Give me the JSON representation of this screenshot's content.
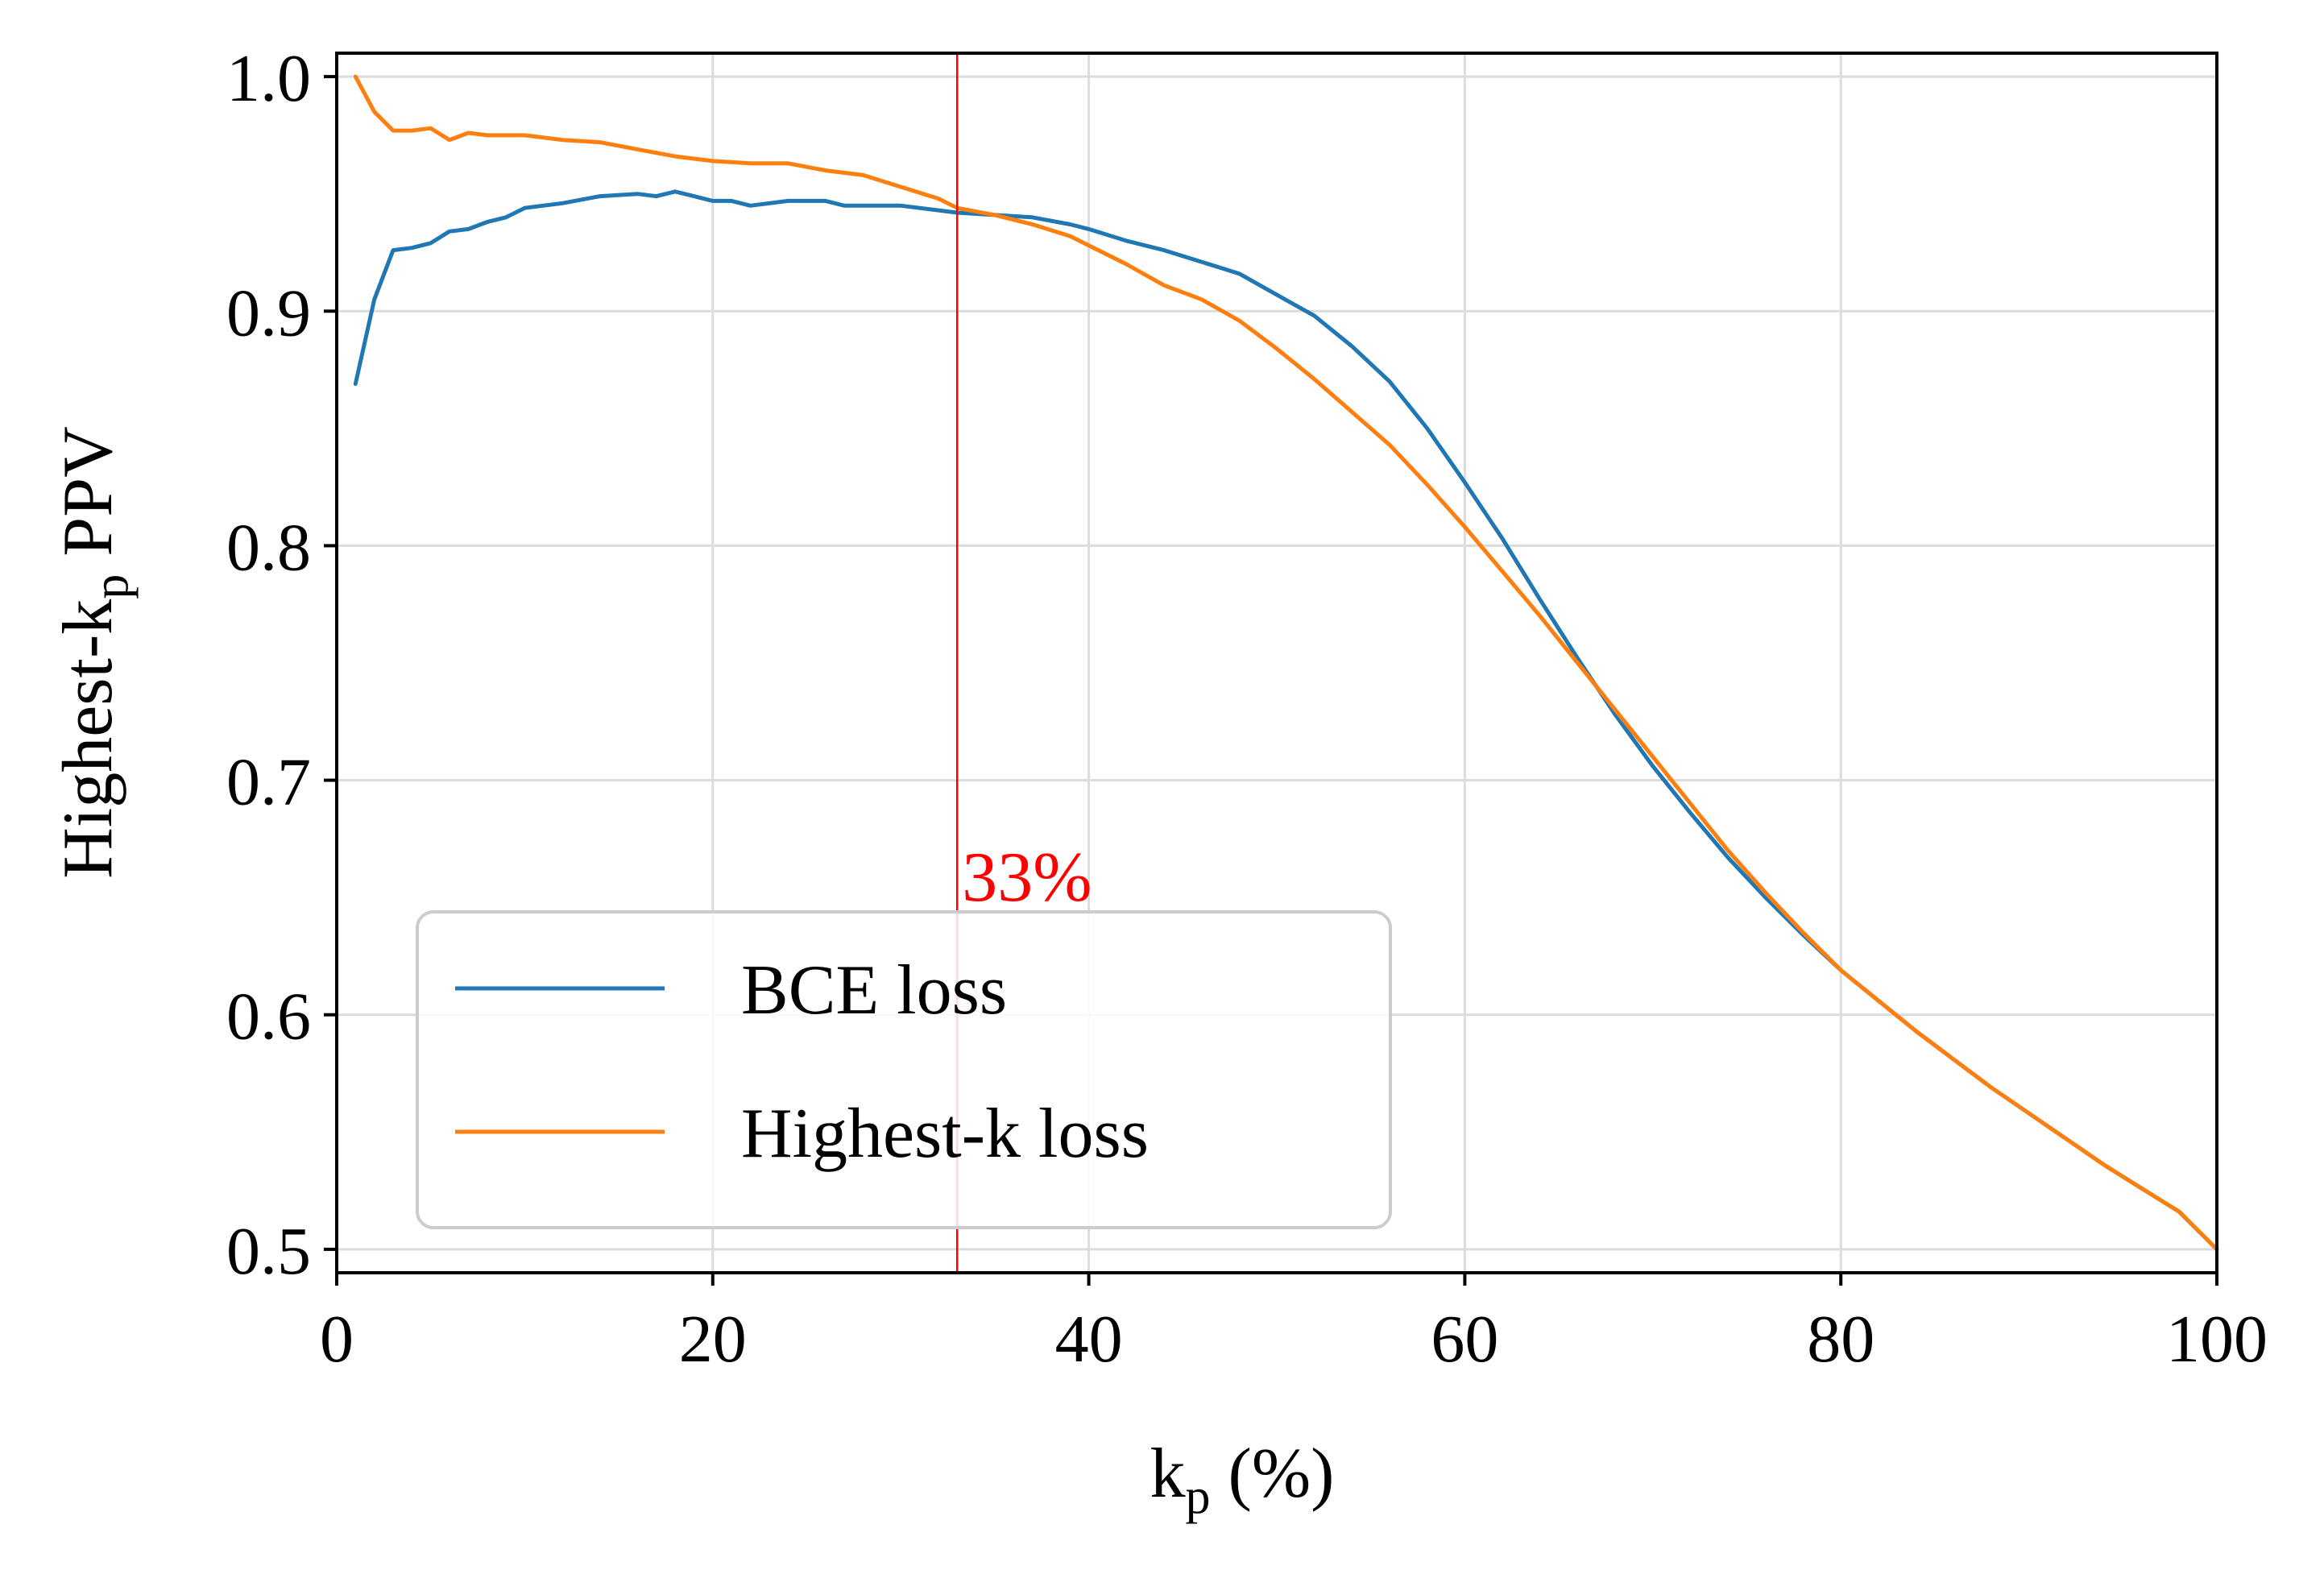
{
  "chart_data": {
    "type": "line",
    "xlabel_main": "k",
    "xlabel_sub": "p",
    "xlabel_tail": " (%)",
    "ylabel_main": "Highest-k",
    "ylabel_sub": "p",
    "ylabel_tail": " PPV",
    "xlim": [
      0,
      100
    ],
    "ylim": [
      0.49,
      1.01
    ],
    "xticks": [
      0,
      20,
      40,
      60,
      80,
      100
    ],
    "xtick_labels": [
      "0",
      "20",
      "40",
      "60",
      "80",
      "100"
    ],
    "yticks": [
      0.5,
      0.6,
      0.7,
      0.8,
      0.9,
      1.0
    ],
    "ytick_labels": [
      "0.5",
      "0.6",
      "0.7",
      "0.8",
      "0.9",
      "1.0"
    ],
    "grid": true,
    "legend_position": "lower-left",
    "vline": {
      "x": 33,
      "label": "33%",
      "color": "#ff0000"
    },
    "series": [
      {
        "name": "BCE loss",
        "color": "#1f77b4",
        "points": [
          [
            1,
            0.869
          ],
          [
            2,
            0.905
          ],
          [
            3,
            0.926
          ],
          [
            4,
            0.927
          ],
          [
            5,
            0.929
          ],
          [
            6,
            0.934
          ],
          [
            7,
            0.935
          ],
          [
            8,
            0.938
          ],
          [
            9,
            0.94
          ],
          [
            10,
            0.944
          ],
          [
            12,
            0.946
          ],
          [
            14,
            0.949
          ],
          [
            16,
            0.95
          ],
          [
            17,
            0.949
          ],
          [
            18,
            0.951
          ],
          [
            19,
            0.949
          ],
          [
            20,
            0.947
          ],
          [
            21,
            0.947
          ],
          [
            22,
            0.945
          ],
          [
            24,
            0.947
          ],
          [
            26,
            0.947
          ],
          [
            27,
            0.945
          ],
          [
            30,
            0.945
          ],
          [
            33,
            0.942
          ],
          [
            35,
            0.941
          ],
          [
            37,
            0.94
          ],
          [
            39,
            0.937
          ],
          [
            40,
            0.935
          ],
          [
            42,
            0.93
          ],
          [
            44,
            0.926
          ],
          [
            46,
            0.921
          ],
          [
            48,
            0.916
          ],
          [
            50,
            0.907
          ],
          [
            52,
            0.898
          ],
          [
            54,
            0.885
          ],
          [
            56,
            0.87
          ],
          [
            58,
            0.85
          ],
          [
            60,
            0.827
          ],
          [
            62,
            0.803
          ],
          [
            64,
            0.777
          ],
          [
            66,
            0.752
          ],
          [
            68,
            0.728
          ],
          [
            70,
            0.706
          ],
          [
            72,
            0.686
          ],
          [
            74,
            0.667
          ],
          [
            76,
            0.65
          ],
          [
            78,
            0.634
          ],
          [
            80,
            0.619
          ],
          [
            82,
            0.606
          ],
          [
            84,
            0.593
          ],
          [
            86,
            0.581
          ],
          [
            88,
            0.569
          ],
          [
            90,
            0.558
          ],
          [
            92,
            0.547
          ],
          [
            94,
            0.536
          ],
          [
            96,
            0.526
          ],
          [
            98,
            0.516
          ],
          [
            100,
            0.5
          ]
        ]
      },
      {
        "name": "Highest-k loss",
        "color": "#ff7f0e",
        "points": [
          [
            1,
            1.0
          ],
          [
            2,
            0.985
          ],
          [
            3,
            0.977
          ],
          [
            4,
            0.977
          ],
          [
            5,
            0.978
          ],
          [
            6,
            0.973
          ],
          [
            7,
            0.976
          ],
          [
            8,
            0.975
          ],
          [
            10,
            0.975
          ],
          [
            12,
            0.973
          ],
          [
            14,
            0.972
          ],
          [
            16,
            0.969
          ],
          [
            18,
            0.966
          ],
          [
            20,
            0.964
          ],
          [
            22,
            0.963
          ],
          [
            24,
            0.963
          ],
          [
            26,
            0.96
          ],
          [
            28,
            0.958
          ],
          [
            30,
            0.953
          ],
          [
            32,
            0.948
          ],
          [
            33,
            0.944
          ],
          [
            35,
            0.941
          ],
          [
            37,
            0.937
          ],
          [
            39,
            0.932
          ],
          [
            40,
            0.928
          ],
          [
            42,
            0.92
          ],
          [
            44,
            0.911
          ],
          [
            46,
            0.905
          ],
          [
            48,
            0.896
          ],
          [
            50,
            0.884
          ],
          [
            52,
            0.871
          ],
          [
            54,
            0.857
          ],
          [
            56,
            0.843
          ],
          [
            58,
            0.826
          ],
          [
            60,
            0.808
          ],
          [
            62,
            0.789
          ],
          [
            64,
            0.77
          ],
          [
            66,
            0.75
          ],
          [
            68,
            0.73
          ],
          [
            70,
            0.71
          ],
          [
            72,
            0.69
          ],
          [
            74,
            0.67
          ],
          [
            76,
            0.652
          ],
          [
            78,
            0.635
          ],
          [
            80,
            0.619
          ],
          [
            82,
            0.606
          ],
          [
            84,
            0.593
          ],
          [
            86,
            0.581
          ],
          [
            88,
            0.569
          ],
          [
            90,
            0.558
          ],
          [
            92,
            0.547
          ],
          [
            94,
            0.536
          ],
          [
            96,
            0.526
          ],
          [
            98,
            0.516
          ],
          [
            100,
            0.5
          ]
        ]
      }
    ]
  }
}
